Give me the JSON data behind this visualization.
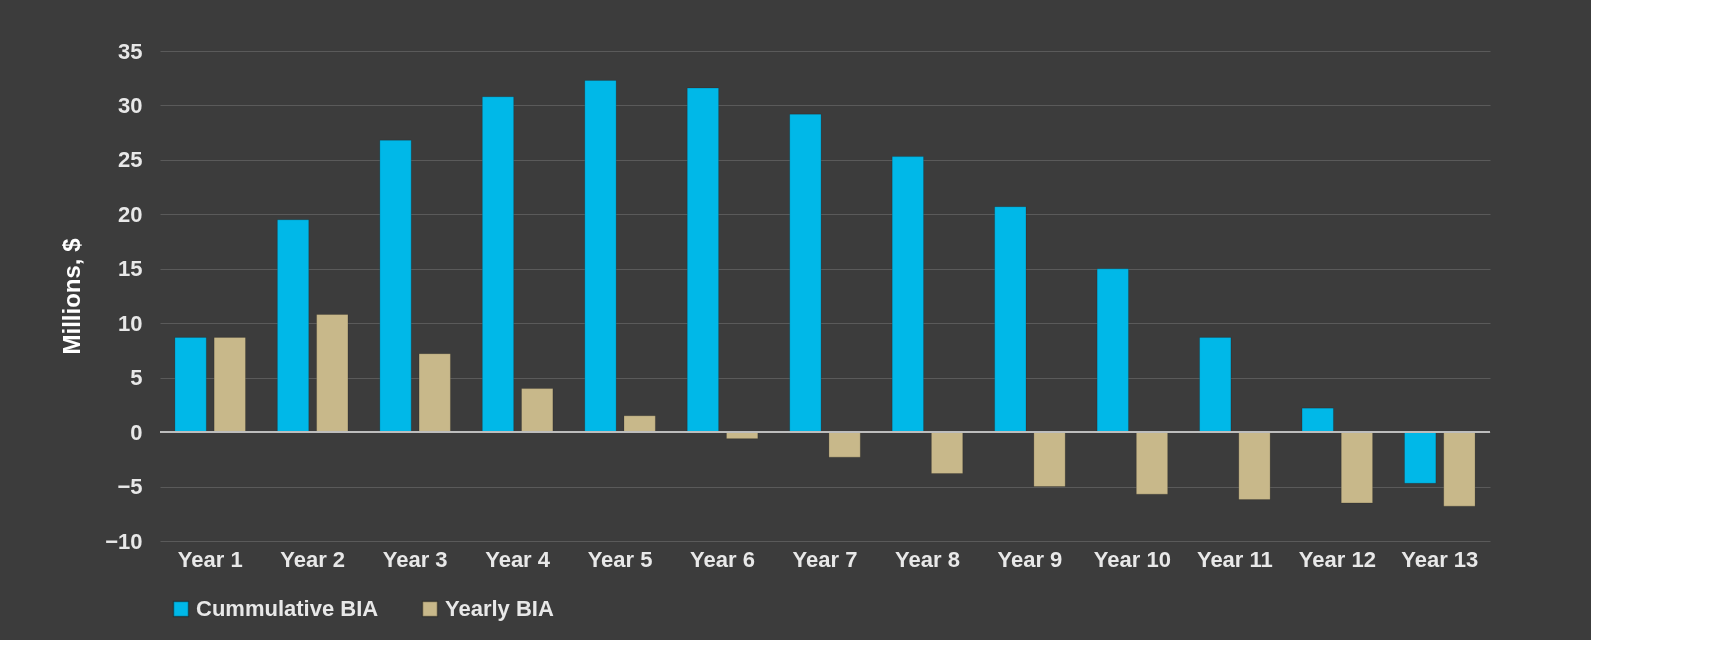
{
  "chart_data": {
    "type": "bar",
    "ylabel": "Millions, $",
    "categories": [
      "Year 1",
      "Year 2",
      "Year 3",
      "Year 4",
      "Year 5",
      "Year 6",
      "Year 7",
      "Year 8",
      "Year 9",
      "Year 10",
      "Year 11",
      "Year 12",
      "Year 13"
    ],
    "series": [
      {
        "name": "Cummulative BIA",
        "color": "#00b8e8",
        "values": [
          8.7,
          19.5,
          26.8,
          30.8,
          32.3,
          31.6,
          29.2,
          25.3,
          20.7,
          15.0,
          8.7,
          2.2,
          -4.7
        ]
      },
      {
        "name": "Yearly BIA",
        "color": "#c8b88a",
        "values": [
          8.7,
          10.8,
          7.2,
          4.0,
          1.5,
          -0.6,
          -2.3,
          -3.8,
          -5.0,
          -5.7,
          -6.2,
          -6.5,
          -6.8
        ]
      }
    ],
    "ylim": [
      -10,
      35
    ],
    "yticks": [
      -10,
      -5,
      0,
      5,
      10,
      15,
      20,
      25,
      30,
      35
    ],
    "grid": "y",
    "legend": "bottom"
  }
}
